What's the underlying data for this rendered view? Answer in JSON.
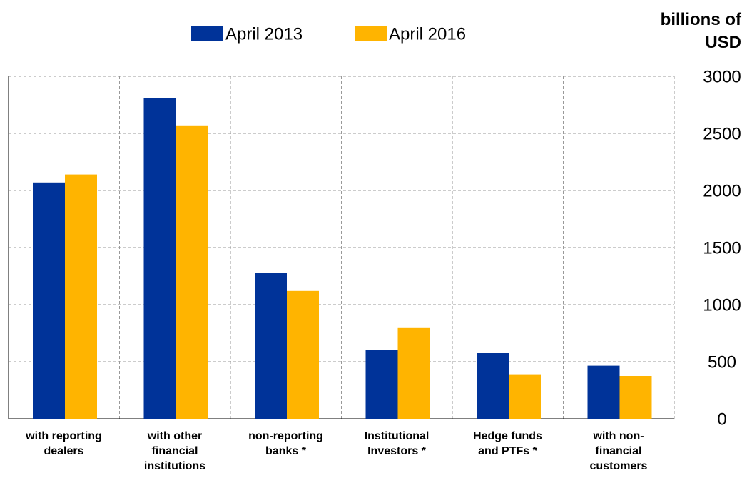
{
  "chart_data": {
    "type": "bar",
    "y_axis_label": "billions of\nUSD",
    "categories": [
      "with reporting\ndealers",
      "with other\nfinancial\ninstitutions",
      "non-reporting\nbanks *",
      "Institutional\nInvestors *",
      "Hedge funds\nand PTFs *",
      "with non-\nfinancial\ncustomers"
    ],
    "series": [
      {
        "name": "April 2013",
        "color": "#003399",
        "values": [
          2070,
          2810,
          1275,
          600,
          575,
          465
        ]
      },
      {
        "name": "April 2016",
        "color": "#ffb400",
        "values": [
          2140,
          2570,
          1120,
          795,
          390,
          375
        ]
      }
    ],
    "ylim": [
      0,
      3000
    ],
    "yticks": [
      0,
      500,
      1000,
      1500,
      2000,
      2500,
      3000
    ],
    "grid": true
  }
}
